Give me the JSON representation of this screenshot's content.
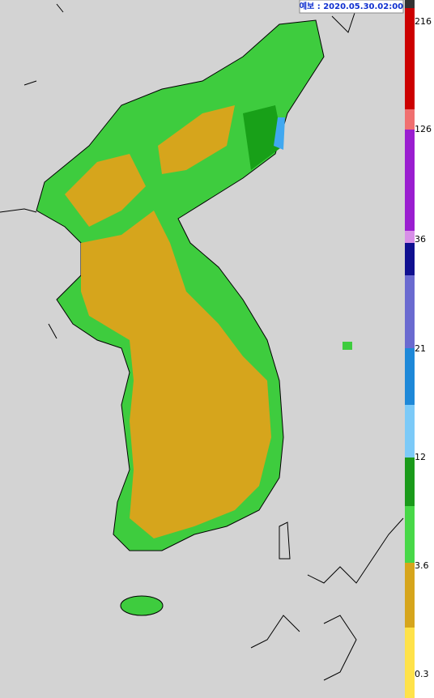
{
  "header": {
    "title": "예보 : 2020.05.30.02:00"
  },
  "legend": {
    "labels": [
      "216",
      "126",
      "36",
      "21",
      "12",
      "3.6",
      "0.3"
    ]
  }
}
